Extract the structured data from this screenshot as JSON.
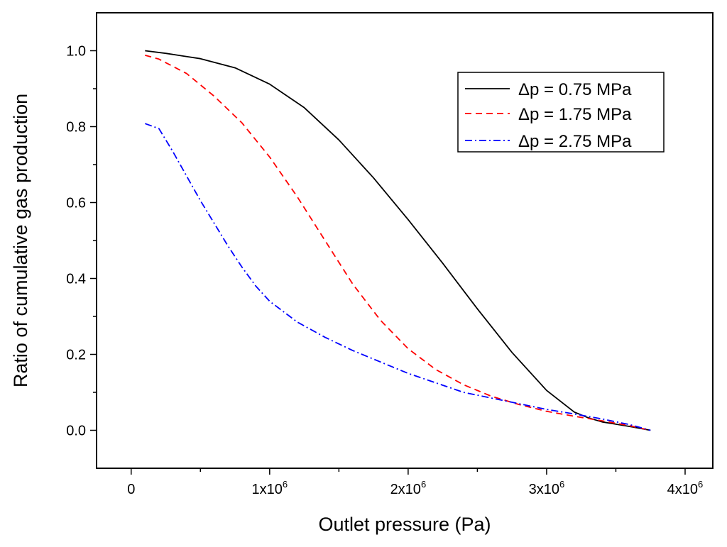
{
  "chart_data": {
    "type": "line",
    "title": "",
    "xlabel": "Outlet pressure (Pa)",
    "ylabel": "Ratio of cumulative gas production",
    "xlim": [
      -250000,
      4200000
    ],
    "ylim": [
      -0.1,
      1.1
    ],
    "x_ticks": [
      {
        "value": 0,
        "base": "0",
        "exp": ""
      },
      {
        "value": 1000000,
        "base": "1x10",
        "exp": "6"
      },
      {
        "value": 2000000,
        "base": "2x10",
        "exp": "6"
      },
      {
        "value": 3000000,
        "base": "3x10",
        "exp": "6"
      },
      {
        "value": 4000000,
        "base": "4x10",
        "exp": "6"
      }
    ],
    "y_ticks": [
      {
        "value": 0.0,
        "label": "0.0"
      },
      {
        "value": 0.2,
        "label": "0.2"
      },
      {
        "value": 0.4,
        "label": "0.4"
      },
      {
        "value": 0.6,
        "label": "0.6"
      },
      {
        "value": 0.8,
        "label": "0.8"
      },
      {
        "value": 1.0,
        "label": "1.0"
      }
    ],
    "legend_position": "top-right",
    "series": [
      {
        "name": "Δp = 0.75 MPa",
        "color": "#000000",
        "dash": "solid",
        "x": [
          100000,
          250000,
          500000,
          750000,
          1000000,
          1250000,
          1500000,
          1750000,
          2000000,
          2250000,
          2500000,
          2750000,
          3000000,
          3200000,
          3300000,
          3400000,
          3500000,
          3600000,
          3750000
        ],
        "y": [
          1.0,
          0.993,
          0.979,
          0.955,
          0.912,
          0.85,
          0.765,
          0.665,
          0.555,
          0.44,
          0.32,
          0.205,
          0.105,
          0.048,
          0.033,
          0.022,
          0.016,
          0.01,
          0.0
        ]
      },
      {
        "name": "Δp = 1.75 MPa",
        "color": "#ff0000",
        "dash": "dashed",
        "x": [
          100000,
          200000,
          400000,
          600000,
          800000,
          1000000,
          1200000,
          1400000,
          1600000,
          1800000,
          2000000,
          2200000,
          2400000,
          2600000,
          2800000,
          3000000,
          3200000,
          3400000,
          3600000,
          3750000
        ],
        "y": [
          0.988,
          0.978,
          0.94,
          0.88,
          0.81,
          0.72,
          0.615,
          0.5,
          0.385,
          0.29,
          0.215,
          0.16,
          0.12,
          0.09,
          0.068,
          0.05,
          0.037,
          0.025,
          0.012,
          0.0
        ]
      },
      {
        "name": "Δp = 2.75 MPa",
        "color": "#0000ff",
        "dash": "dashdot",
        "x": [
          100000,
          200000,
          300000,
          400000,
          500000,
          600000,
          700000,
          800000,
          900000,
          1000000,
          1200000,
          1400000,
          1600000,
          1800000,
          2000000,
          2200000,
          2400000,
          2600000,
          2800000,
          3000000,
          3200000,
          3400000,
          3600000,
          3750000
        ],
        "y": [
          0.808,
          0.795,
          0.735,
          0.67,
          0.605,
          0.545,
          0.485,
          0.43,
          0.38,
          0.34,
          0.285,
          0.245,
          0.21,
          0.18,
          0.15,
          0.125,
          0.1,
          0.085,
          0.07,
          0.055,
          0.043,
          0.03,
          0.015,
          0.0
        ]
      }
    ]
  }
}
